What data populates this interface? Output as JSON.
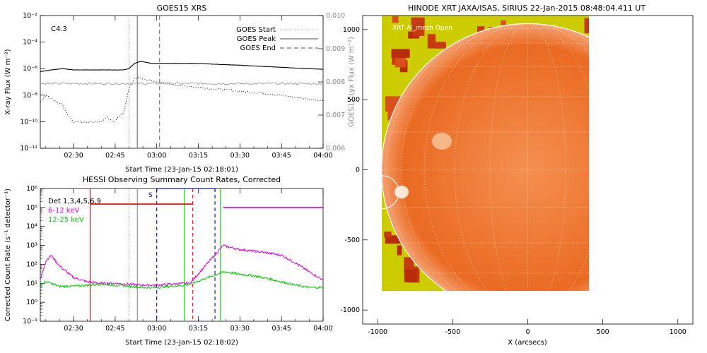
{
  "goes_panel": {
    "title": "GOES15 XRS",
    "flare_class": "C4.3",
    "xlabel": "Start Time (23-Jan-15 02:18:01)",
    "ylabel_left": "X-ray Flux (W m⁻²)",
    "ylabel_right": "GOES15 Lyx Flux (W m⁻²)"
  },
  "hessi_panel": {
    "title": "HESSI Observing Summary Count Rates, Corrected",
    "xlabel": "Start Time (23-Jan-15 02:18:02)",
    "ylabel": "Corrected Count Rate (s⁻¹ detector⁻¹)",
    "det_text": "Det 1,3,4,5,6,9",
    "marker_s": "S"
  },
  "xrt_panel": {
    "title": "HINODE XRT JAXA/ISAS, SIRIUS 22-Jan-2015 08:48:04.411 UT",
    "filter_text": "XRT Al_mesh Open",
    "xlabel": "X (arcsecs)"
  },
  "chart_data": [
    {
      "type": "line",
      "title": "GOES15 XRS",
      "xlabel": "Start Time (23-Jan-15 02:18:01)",
      "ylabel": "X-ray Flux (W m⁻²)",
      "y2label": "GOES15 Lyx Flux (W m⁻²)",
      "xlim": [
        "02:18",
        "04:00"
      ],
      "xticks": [
        "02:30",
        "02:45",
        "03:00",
        "03:15",
        "03:30",
        "03:45",
        "04:00"
      ],
      "ylim": [
        1e-12,
        0.01
      ],
      "yscale": "log",
      "yticks": [
        "10⁻¹²",
        "10⁻¹⁰",
        "10⁻⁸",
        "10⁻⁶",
        "10⁻⁴",
        "10⁻²"
      ],
      "y2lim": [
        0.006,
        0.01
      ],
      "y2ticks": [
        "0.006",
        "0.007",
        "0.008",
        "0.009",
        "0.010"
      ],
      "legend": [
        "GOES Start",
        "GOES Peak",
        "GOES End"
      ],
      "legend_position": "top-right",
      "vlines": {
        "GOES Start": "02:50",
        "GOES Peak": "02:53",
        "GOES End": "03:01"
      },
      "series": [
        {
          "name": "",
          "color": "#000000",
          "style": "solid",
          "x": [
            "02:18",
            "02:22",
            "02:26",
            "02:30",
            "02:34",
            "02:38",
            "02:42",
            "02:46",
            "02:48",
            "02:50",
            "02:52",
            "02:54",
            "02:58",
            "03:00",
            "03:05",
            "03:10",
            "03:15",
            "03:20",
            "03:25",
            "03:30",
            "03:35",
            "03:40",
            "03:45",
            "03:50",
            "03:55",
            "04:00"
          ],
          "values": [
            6e-07,
            8e-07,
            1e-06,
            8e-07,
            8e-07,
            8e-07,
            8e-07,
            8e-07,
            8e-07,
            1e-06,
            2.5e-06,
            3.5e-06,
            2.5e-06,
            2.5e-06,
            2.5e-06,
            2.5e-06,
            2.5e-06,
            2.2e-06,
            2e-06,
            1.8e-06,
            1.6e-06,
            1.4e-06,
            1.25e-06,
            1.1e-06,
            1e-06,
            9e-07
          ]
        },
        {
          "name": "",
          "color": "#000000",
          "style": "dotted",
          "x": [
            "02:18",
            "02:20",
            "02:23",
            "02:26",
            "02:28",
            "02:30",
            "02:34",
            "02:38",
            "02:40",
            "02:42",
            "02:44",
            "02:46",
            "02:48",
            "02:50",
            "02:52",
            "02:54",
            "02:56",
            "03:00",
            "03:05",
            "03:10",
            "03:15",
            "03:20",
            "03:25",
            "03:30",
            "03:35",
            "03:40",
            "03:45",
            "03:50",
            "03:55",
            "04:00"
          ],
          "values": [
            3e-09,
            1e-08,
            4e-09,
            2e-09,
            3e-10,
            1e-10,
            1e-10,
            1e-10,
            1e-10,
            2e-10,
            1e-10,
            2e-10,
            5e-10,
            3e-08,
            2e-07,
            2e-07,
            1.5e-07,
            1e-07,
            7e-08,
            5e-08,
            4e-08,
            3e-08,
            2.5e-08,
            2e-08,
            1.6e-08,
            1.3e-08,
            1e-08,
            7e-09,
            5e-09,
            4e-09
          ]
        },
        {
          "name": "",
          "color": "#999999",
          "style": "solid",
          "axis": "y2",
          "x": [
            "02:18",
            "02:30",
            "02:45",
            "03:00",
            "03:15",
            "03:30",
            "03:45",
            "04:00"
          ],
          "values": [
            0.00795,
            0.00795,
            0.00795,
            0.00795,
            0.00795,
            0.00795,
            0.00795,
            0.00795
          ]
        }
      ]
    },
    {
      "type": "line",
      "title": "HESSI Observing Summary Count Rates, Corrected",
      "xlabel": "Start Time (23-Jan-15 02:18:02)",
      "ylabel": "Corrected Count Rate (s⁻¹ detector⁻¹)",
      "xlim": [
        "02:18",
        "04:00"
      ],
      "xticks": [
        "02:30",
        "02:45",
        "03:00",
        "03:15",
        "03:30",
        "03:45",
        "04:00"
      ],
      "ylim": [
        0.1,
        1000000.0
      ],
      "yscale": "log",
      "yticks": [
        "10⁻¹",
        "10⁰",
        "10¹",
        "10²",
        "10³",
        "10⁴",
        "10⁵",
        "10⁶"
      ],
      "legend": [
        "Det 1,3,4,5,6,9",
        "6-12 keV",
        "12-25 keV"
      ],
      "legend_position": "top-left",
      "series": [
        {
          "name": "6-12 keV",
          "color": "#dd00dd",
          "x": [
            "02:18",
            "02:20",
            "02:22",
            "02:24",
            "02:26",
            "02:30",
            "02:35",
            "02:40",
            "02:45",
            "02:50",
            "02:55",
            "03:00",
            "03:05",
            "03:10",
            "03:12",
            "03:24",
            "03:25",
            "03:30",
            "03:35",
            "03:40",
            "03:45",
            "03:50",
            "03:55",
            "04:00"
          ],
          "values": [
            15,
            150,
            300,
            120,
            60,
            20,
            12,
            10,
            10,
            9,
            8,
            8,
            9,
            10,
            10,
            1000,
            900,
            600,
            500,
            400,
            300,
            120,
            40,
            15
          ]
        },
        {
          "name": "12-25 keV",
          "color": "#00cc00",
          "x": [
            "02:18",
            "02:20",
            "02:25",
            "02:30",
            "02:35",
            "02:40",
            "02:45",
            "02:50",
            "02:55",
            "03:00",
            "03:05",
            "03:10",
            "03:12",
            "03:24",
            "03:25",
            "03:30",
            "03:35",
            "03:40",
            "03:45",
            "03:50",
            "03:55",
            "04:00"
          ],
          "values": [
            8,
            12,
            7,
            7,
            8,
            9,
            8,
            7,
            6,
            6,
            7,
            8,
            9,
            40,
            40,
            30,
            25,
            18,
            12,
            8,
            6,
            6
          ]
        },
        {
          "name": "",
          "color": "#dd00dd",
          "x": [
            "03:24",
            "04:00"
          ],
          "values": [
            100000,
            100000
          ]
        },
        {
          "name": "",
          "color": "#ee0000",
          "x": [
            "02:36",
            "03:13"
          ],
          "values": [
            150000,
            150000
          ]
        },
        {
          "name": "",
          "color": "#0000cc",
          "x": [
            "03:00",
            "03:21"
          ],
          "values": [
            1000000,
            1000000
          ]
        }
      ]
    },
    {
      "type": "heatmap",
      "title": "HINODE XRT JAXA/ISAS, SIRIUS 22-Jan-2015 08:48:04.411 UT",
      "xlabel": "X (arcsecs)",
      "ylabel": "",
      "xlim": [
        -1100,
        1100
      ],
      "ylim": [
        -1100,
        1100
      ],
      "xticks": [
        "-1000",
        "-500",
        "0",
        "500",
        "1000"
      ],
      "yticks": [
        "-1000",
        "-500",
        "0",
        "500",
        "1000"
      ],
      "limb_radius": 975,
      "circle_center": [
        -970,
        -160
      ],
      "colors": {
        "disk": "#e8601a",
        "fill": "#cccc00",
        "dark": "#c83a10"
      }
    }
  ]
}
